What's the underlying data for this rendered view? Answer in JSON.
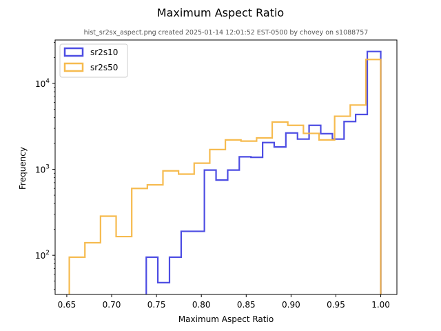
{
  "chart_data": {
    "type": "histogram-step",
    "title": "Maximum Aspect Ratio",
    "subtitle": "hist_sr2sx_aspect.png created 2025-01-14 12:01:52 EST-0500 by chovey on s1088757",
    "xlabel": "Maximum Aspect Ratio",
    "ylabel": "Frequency",
    "xlim": [
      0.637,
      1.018
    ],
    "ylim": [
      35,
      32000
    ],
    "yscale": "log",
    "x_ticks": [
      "0.65",
      "0.70",
      "0.75",
      "0.80",
      "0.85",
      "0.90",
      "0.95",
      "1.00"
    ],
    "x_tick_values": [
      0.65,
      0.7,
      0.75,
      0.8,
      0.85,
      0.9,
      0.95,
      1.0
    ],
    "y_ticks": [
      {
        "value": 100,
        "base": "10",
        "exp": "2"
      },
      {
        "value": 1000,
        "base": "10",
        "exp": "3"
      },
      {
        "value": 10000,
        "base": "10",
        "exp": "4"
      }
    ],
    "legend_position": "upper-left",
    "series": [
      {
        "name": "sr2s10",
        "color": "#3a3ae0",
        "edges": [
          0.7386,
          0.7515,
          0.7645,
          0.7775,
          0.7904,
          0.8034,
          0.8164,
          0.8294,
          0.8423,
          0.8553,
          0.8683,
          0.8812,
          0.8942,
          0.9072,
          0.9201,
          0.9331,
          0.9461,
          0.9591,
          0.972,
          0.985,
          0.998,
          1.0
        ],
        "values": [
          95,
          48,
          95,
          190,
          190,
          980,
          750,
          980,
          1400,
          1380,
          2050,
          1820,
          2650,
          2250,
          3250,
          2600,
          2250,
          3600,
          4350,
          23500,
          23500
        ]
      },
      {
        "name": "sr2s50",
        "color": "#f5b43c",
        "edges": [
          0.6528,
          0.6702,
          0.6876,
          0.705,
          0.7224,
          0.7398,
          0.7572,
          0.7746,
          0.792,
          0.8094,
          0.8268,
          0.8442,
          0.8616,
          0.879,
          0.8964,
          0.9138,
          0.9312,
          0.9486,
          0.966,
          0.9834,
          1.0
        ],
        "values": [
          95,
          140,
          285,
          165,
          600,
          660,
          960,
          880,
          1180,
          1700,
          2200,
          2130,
          2320,
          3550,
          3250,
          2620,
          2200,
          4150,
          5600,
          19000
        ]
      }
    ]
  }
}
